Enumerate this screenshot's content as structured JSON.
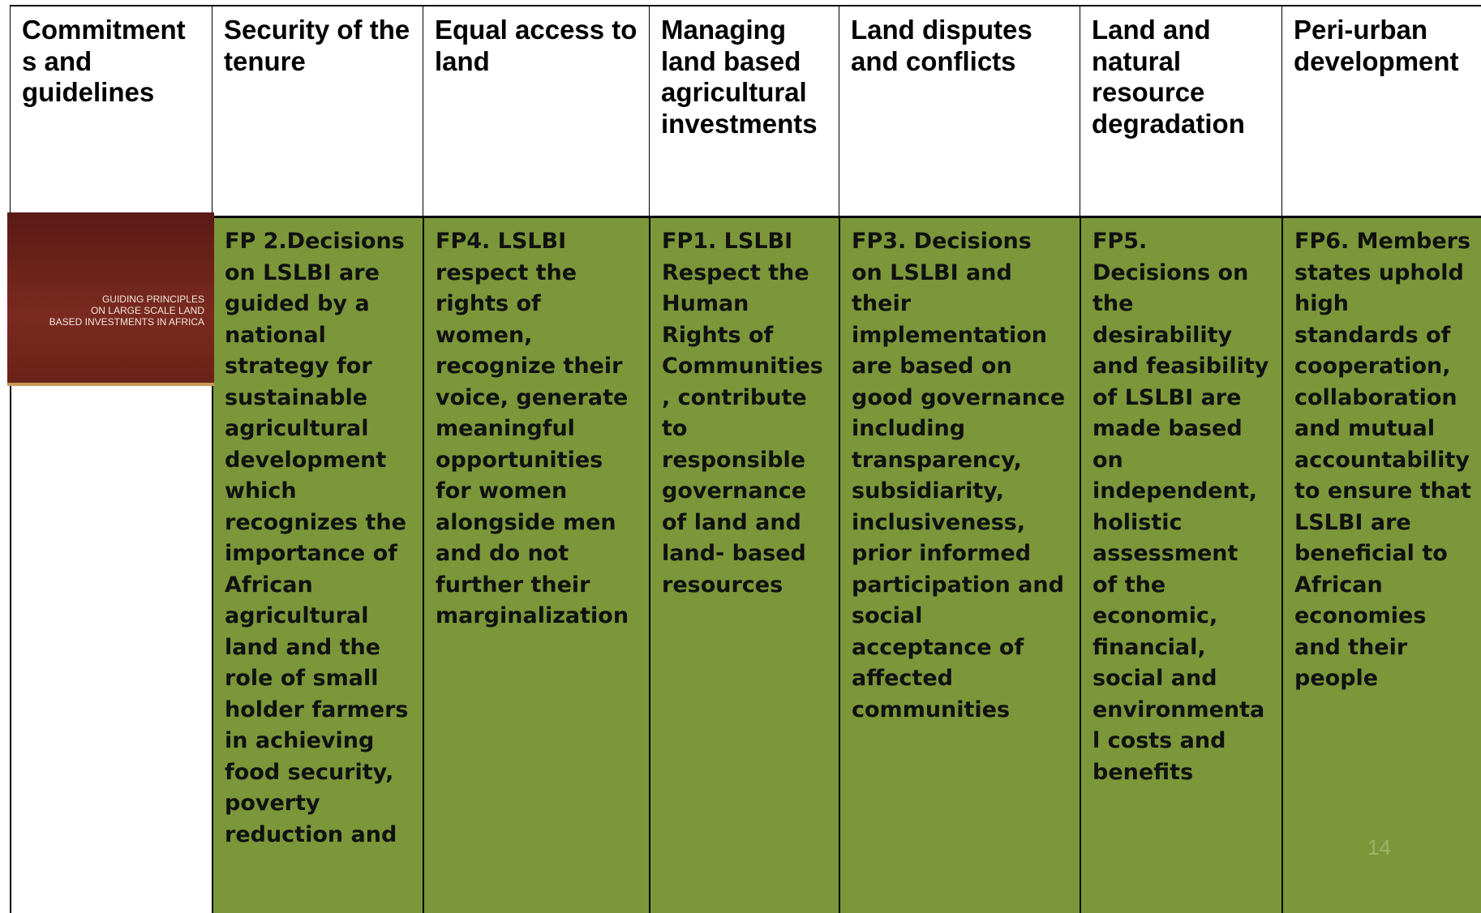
{
  "table": {
    "header": [
      "Commitments and guidelines",
      "Security of the tenure",
      "Equal access to land",
      "Managing land based agricultural investments",
      "Land disputes and conflicts",
      "Land and natural resource degradation",
      "Peri-urban development"
    ],
    "body": [
      "FP 2.Decisions on LSLBI are guided by a national strategy for sustainable agricultural development which recognizes the importance of African agricultural land and the role of small holder farmers in achieving food security, poverty reduction and",
      "FP4. LSLBI respect the rights of women, recognize their voice, generate meaningful opportunities for women alongside men and do not further their marginalization",
      "FP1. LSLBI Respect the Human Rights of Communities, contribute to responsible governance of land and land- based resources",
      "FP3. Decisions on LSLBI and their implementation are based on good governance including transparency, subsidiarity, inclusiveness, prior informed participation and social acceptance of affected communities",
      "FP5. Decisions on the desirability and feasibility of LSLBI are made based on independent, holistic assessment of the economic, financial, social and environmental costs and benefits",
      "FP6. Members states uphold high standards of cooperation, collaboration and mutual accountability to ensure that LSLBI are beneficial to African economies and their people"
    ]
  },
  "cover": {
    "lines": [
      "GUIDING PRINCIPLES",
      "ON LARGE SCALE LAND",
      "BASED INVESTMENTS IN AFRICA"
    ]
  },
  "page_number": "14"
}
